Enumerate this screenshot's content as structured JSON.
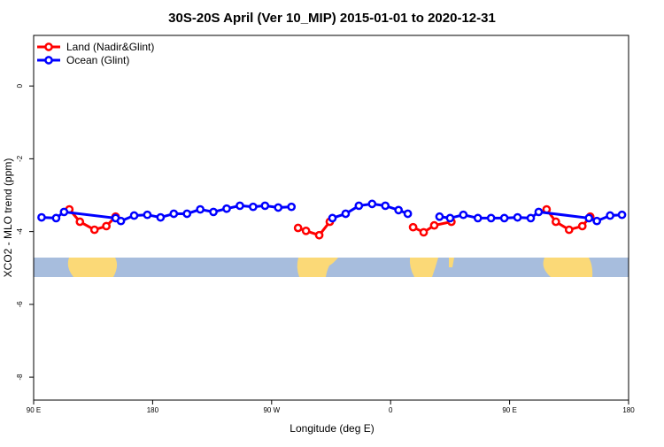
{
  "chart_data": {
    "type": "line",
    "title": "30S-20S April (Ver 10_MIP)   2015-01-01 to 2020-12-31",
    "x_label": "Longitude (deg E)",
    "y_label": "XCO2 - MLO trend (ppm)",
    "xlim": [
      90,
      540
    ],
    "ylim": [
      -8.63,
      1.39
    ],
    "xticks": [
      {
        "value": 90,
        "label": "90 E"
      },
      180,
      {
        "value": 270,
        "label": "90 W"
      },
      {
        "value": 360,
        "label": "0"
      },
      {
        "value": 450,
        "label": "90 E"
      },
      {
        "value": 540,
        "label": "180"
      }
    ],
    "yticks": [
      0,
      -2,
      -4,
      -6,
      -8
    ],
    "legend": "top-left",
    "series": [
      {
        "name": "Land (Nadir&Glint)",
        "color": "#ff0000",
        "x": [
          117,
          125,
          136,
          145,
          152,
          null,
          290,
          296,
          306,
          314,
          null,
          377,
          385,
          393,
          406,
          null,
          478,
          485,
          495,
          505,
          511
        ],
        "values": [
          -3.39,
          -3.73,
          -3.95,
          -3.85,
          -3.59,
          null,
          -3.9,
          -3.98,
          -4.1,
          -3.73,
          null,
          -3.88,
          -4.02,
          -3.83,
          -3.73,
          null,
          -3.39,
          -3.73,
          -3.95,
          -3.85,
          -3.59
        ]
      },
      {
        "name": "Ocean (Glint)",
        "color": "#0000ff",
        "x": [
          96,
          107,
          113,
          152,
          156,
          166,
          176,
          186,
          196,
          206,
          216,
          226,
          236,
          246,
          256,
          265,
          275,
          285,
          null,
          316,
          326,
          336,
          346,
          356,
          366,
          373,
          null,
          397,
          405,
          415,
          426,
          436,
          446,
          456,
          466,
          472,
          510,
          516,
          526,
          535
        ],
        "values": [
          -3.61,
          -3.63,
          -3.46,
          -3.63,
          -3.71,
          -3.56,
          -3.54,
          -3.61,
          -3.51,
          -3.51,
          -3.39,
          -3.46,
          -3.37,
          -3.29,
          -3.32,
          -3.29,
          -3.34,
          -3.32,
          null,
          -3.63,
          -3.51,
          -3.29,
          -3.24,
          -3.29,
          -3.41,
          -3.51,
          null,
          -3.59,
          -3.63,
          -3.54,
          -3.63,
          -3.63,
          -3.63,
          -3.61,
          -3.63,
          -3.46,
          -3.63,
          -3.71,
          -3.56,
          -3.54
        ]
      }
    ]
  }
}
